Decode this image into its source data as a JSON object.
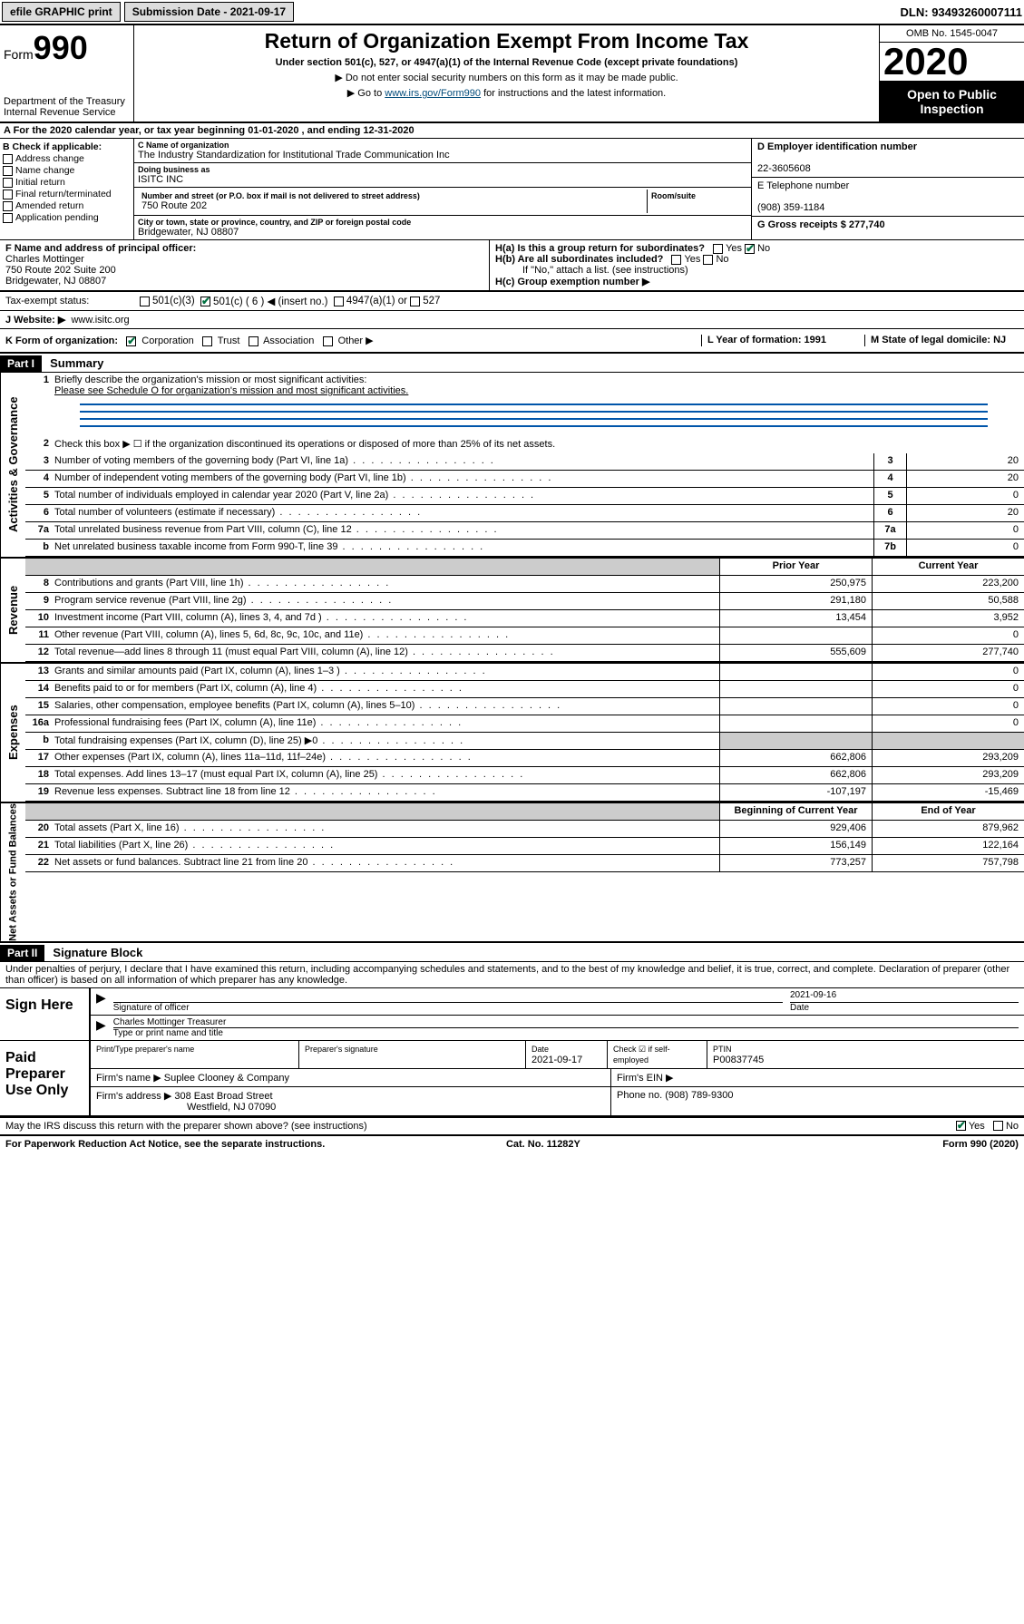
{
  "top": {
    "efile": "efile GRAPHIC print",
    "subdate_lbl": "Submission Date - 2021-09-17",
    "dln": "DLN: 93493260007111"
  },
  "header": {
    "form_prefix": "Form",
    "form_num": "990",
    "dept": "Department of the Treasury\nInternal Revenue Service",
    "title": "Return of Organization Exempt From Income Tax",
    "sub": "Under section 501(c), 527, or 4947(a)(1) of the Internal Revenue Code (except private foundations)",
    "note1": "▶ Do not enter social security numbers on this form as it may be made public.",
    "note2a": "▶ Go to ",
    "note2link": "www.irs.gov/Form990",
    "note2b": " for instructions and the latest information.",
    "omb": "OMB No. 1545-0047",
    "year": "2020",
    "open": "Open to Public Inspection"
  },
  "lineA": "A  For the 2020 calendar year, or tax year beginning 01-01-2020    , and ending 12-31-2020",
  "checkB": {
    "hdr": "B Check if applicable:",
    "items": [
      "Address change",
      "Name change",
      "Initial return",
      "Final return/terminated",
      "Amended return",
      "Application pending"
    ]
  },
  "colC": {
    "name_lbl": "C Name of organization",
    "name": "The Industry Standardization for Institutional Trade Communication Inc",
    "dba_lbl": "Doing business as",
    "dba": "ISITC INC",
    "street_lbl": "Number and street (or P.O. box if mail is not delivered to street address)",
    "street": "750 Route 202",
    "room_lbl": "Room/suite",
    "city_lbl": "City or town, state or province, country, and ZIP or foreign postal code",
    "city": "Bridgewater, NJ  08807"
  },
  "colD": {
    "ein_lbl": "D Employer identification number",
    "ein": "22-3605608",
    "tel_lbl": "E Telephone number",
    "tel": "(908) 359-1184",
    "gross_lbl": "G Gross receipts $ 277,740"
  },
  "rowF": {
    "f_lbl": "F  Name and address of principal officer:",
    "f_name": "Charles Mottinger",
    "f_addr1": "750 Route 202 Suite 200",
    "f_addr2": "Bridgewater, NJ  08807",
    "ha": "H(a)  Is this a group return for subordinates?",
    "hb": "H(b)  Are all subordinates included?",
    "hbnote": "If \"No,\" attach a list. (see instructions)",
    "hc": "H(c)  Group exemption number ▶"
  },
  "taxstatus": {
    "lbl": "Tax-exempt status:",
    "c3": "501(c)(3)",
    "c": "501(c) ( 6 ) ◀ (insert no.)",
    "a1": "4947(a)(1) or",
    "s527": "527"
  },
  "website": {
    "lbl": "J  Website: ▶",
    "url": "www.isitc.org"
  },
  "rowK": {
    "k": "K Form of organization:",
    "corp": "Corporation",
    "trust": "Trust",
    "assoc": "Association",
    "other": "Other ▶",
    "l": "L Year of formation: 1991",
    "m": "M State of legal domicile: NJ"
  },
  "part1": {
    "hdr": "Part I",
    "title": "Summary",
    "q1": "Briefly describe the organization's mission or most significant activities:",
    "q1ans": "Please see Schedule O for organization's mission and most significant activities.",
    "q2": "Check this box ▶ ☐  if the organization discontinued its operations or disposed of more than 25% of its net assets.",
    "lines_gov": [
      {
        "n": "3",
        "d": "Number of voting members of the governing body (Part VI, line 1a)",
        "r": "3",
        "v": "20"
      },
      {
        "n": "4",
        "d": "Number of independent voting members of the governing body (Part VI, line 1b)",
        "r": "4",
        "v": "20"
      },
      {
        "n": "5",
        "d": "Total number of individuals employed in calendar year 2020 (Part V, line 2a)",
        "r": "5",
        "v": "0"
      },
      {
        "n": "6",
        "d": "Total number of volunteers (estimate if necessary)",
        "r": "6",
        "v": "20"
      },
      {
        "n": "7a",
        "d": "Total unrelated business revenue from Part VIII, column (C), line 12",
        "r": "7a",
        "v": "0"
      },
      {
        "n": "b",
        "d": "Net unrelated business taxable income from Form 990-T, line 39",
        "r": "7b",
        "v": "0"
      }
    ],
    "py": "Prior Year",
    "cy": "Current Year",
    "rev": [
      {
        "n": "8",
        "d": "Contributions and grants (Part VIII, line 1h)",
        "p": "250,975",
        "c": "223,200"
      },
      {
        "n": "9",
        "d": "Program service revenue (Part VIII, line 2g)",
        "p": "291,180",
        "c": "50,588"
      },
      {
        "n": "10",
        "d": "Investment income (Part VIII, column (A), lines 3, 4, and 7d )",
        "p": "13,454",
        "c": "3,952"
      },
      {
        "n": "11",
        "d": "Other revenue (Part VIII, column (A), lines 5, 6d, 8c, 9c, 10c, and 11e)",
        "p": "",
        "c": "0"
      },
      {
        "n": "12",
        "d": "Total revenue—add lines 8 through 11 (must equal Part VIII, column (A), line 12)",
        "p": "555,609",
        "c": "277,740"
      }
    ],
    "exp": [
      {
        "n": "13",
        "d": "Grants and similar amounts paid (Part IX, column (A), lines 1–3 )",
        "p": "",
        "c": "0"
      },
      {
        "n": "14",
        "d": "Benefits paid to or for members (Part IX, column (A), line 4)",
        "p": "",
        "c": "0"
      },
      {
        "n": "15",
        "d": "Salaries, other compensation, employee benefits (Part IX, column (A), lines 5–10)",
        "p": "",
        "c": "0"
      },
      {
        "n": "16a",
        "d": "Professional fundraising fees (Part IX, column (A), line 11e)",
        "p": "",
        "c": "0"
      },
      {
        "n": "b",
        "d": "Total fundraising expenses (Part IX, column (D), line 25) ▶0",
        "p": "",
        "c": "",
        "shaded": true
      },
      {
        "n": "17",
        "d": "Other expenses (Part IX, column (A), lines 11a–11d, 11f–24e)",
        "p": "662,806",
        "c": "293,209"
      },
      {
        "n": "18",
        "d": "Total expenses. Add lines 13–17 (must equal Part IX, column (A), line 25)",
        "p": "662,806",
        "c": "293,209"
      },
      {
        "n": "19",
        "d": "Revenue less expenses. Subtract line 18 from line 12",
        "p": "-107,197",
        "c": "-15,469"
      }
    ],
    "boy": "Beginning of Current Year",
    "eoy": "End of Year",
    "net": [
      {
        "n": "20",
        "d": "Total assets (Part X, line 16)",
        "p": "929,406",
        "c": "879,962"
      },
      {
        "n": "21",
        "d": "Total liabilities (Part X, line 26)",
        "p": "156,149",
        "c": "122,164"
      },
      {
        "n": "22",
        "d": "Net assets or fund balances. Subtract line 21 from line 20",
        "p": "773,257",
        "c": "757,798"
      }
    ]
  },
  "part2": {
    "hdr": "Part II",
    "title": "Signature Block",
    "decl": "Under penalties of perjury, I declare that I have examined this return, including accompanying schedules and statements, and to the best of my knowledge and belief, it is true, correct, and complete. Declaration of preparer (other than officer) is based on all information of which preparer has any knowledge."
  },
  "sign": {
    "lbl": "Sign Here",
    "sig_of": "Signature of officer",
    "date": "2021-09-16",
    "date_lbl": "Date",
    "name": "Charles Mottinger  Treasurer",
    "name_lbl": "Type or print name and title"
  },
  "paid": {
    "lbl": "Paid Preparer Use Only",
    "prep_lbl": "Print/Type preparer's name",
    "sig_lbl": "Preparer's signature",
    "date_lbl": "Date",
    "date": "2021-09-17",
    "check_lbl": "Check ☑ if self-employed",
    "ptin_lbl": "PTIN",
    "ptin": "P00837745",
    "firm_lbl": "Firm's name    ▶",
    "firm": "Suplee Clooney & Company",
    "ein_lbl": "Firm's EIN ▶",
    "addr_lbl": "Firm's address ▶",
    "addr1": "308 East Broad Street",
    "addr2": "Westfield, NJ  07090",
    "phone_lbl": "Phone no. (908) 789-9300"
  },
  "discuss": "May the IRS discuss this return with the preparer shown above? (see instructions)",
  "footer": {
    "pra": "For Paperwork Reduction Act Notice, see the separate instructions.",
    "cat": "Cat. No. 11282Y",
    "form": "Form 990 (2020)"
  },
  "yes": "Yes",
  "no": "No"
}
